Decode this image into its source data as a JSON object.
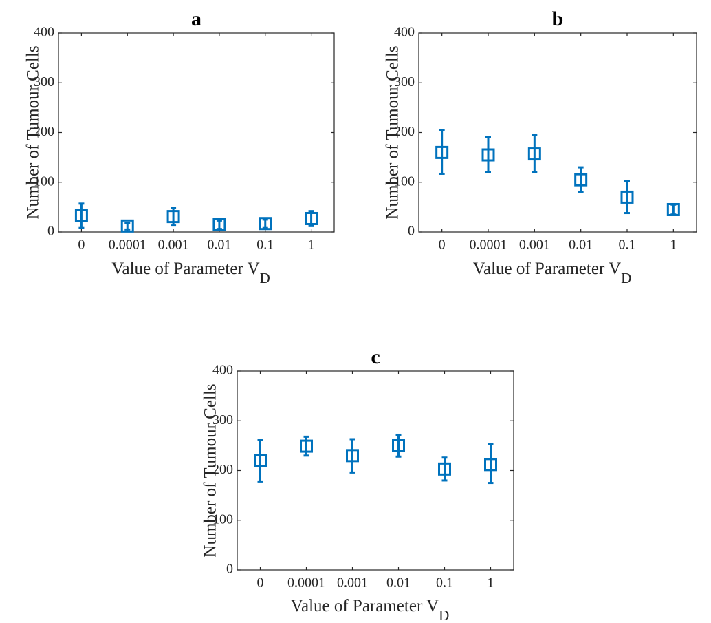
{
  "chart_data": [
    {
      "type": "scatter",
      "title": "a",
      "ylabel": "Number of Tumour Cells",
      "xlabel": "Value of Parameter V",
      "xlabel_sub": "D",
      "categories": [
        "0",
        "0.0001",
        "0.001",
        "0.01",
        "0.1",
        "1"
      ],
      "values": [
        33,
        12,
        31,
        15,
        17,
        27
      ],
      "err_low": [
        8,
        5,
        13,
        6,
        8,
        12
      ],
      "err_high": [
        57,
        18,
        49,
        23,
        25,
        42
      ],
      "ylim": [
        0,
        400
      ],
      "yticks": [
        "0",
        "100",
        "200",
        "300",
        "400"
      ],
      "grid": false
    },
    {
      "type": "scatter",
      "title": "b",
      "ylabel": "Number of Tumour Cells",
      "xlabel": "Value of Parameter V",
      "xlabel_sub": "D",
      "categories": [
        "0",
        "0.0001",
        "0.001",
        "0.01",
        "0.1",
        "1"
      ],
      "values": [
        160,
        155,
        157,
        105,
        70,
        45
      ],
      "err_low": [
        117,
        120,
        120,
        81,
        38,
        35
      ],
      "err_high": [
        205,
        191,
        195,
        130,
        103,
        55
      ],
      "ylim": [
        0,
        400
      ],
      "yticks": [
        "0",
        "100",
        "200",
        "300",
        "400"
      ],
      "grid": false
    },
    {
      "type": "scatter",
      "title": "c",
      "ylabel": "Number of Tumour Cells",
      "xlabel": "Value of Parameter V",
      "xlabel_sub": "D",
      "categories": [
        "0",
        "0.0001",
        "0.001",
        "0.01",
        "0.1",
        "1"
      ],
      "values": [
        220,
        249,
        230,
        250,
        203,
        212
      ],
      "err_low": [
        178,
        230,
        196,
        228,
        180,
        175
      ],
      "err_high": [
        262,
        268,
        263,
        272,
        226,
        253
      ],
      "ylim": [
        0,
        400
      ],
      "yticks": [
        "0",
        "100",
        "200",
        "300",
        "400"
      ],
      "grid": false
    }
  ],
  "colors": {
    "series": "#0072BD",
    "axis": "#262626"
  }
}
